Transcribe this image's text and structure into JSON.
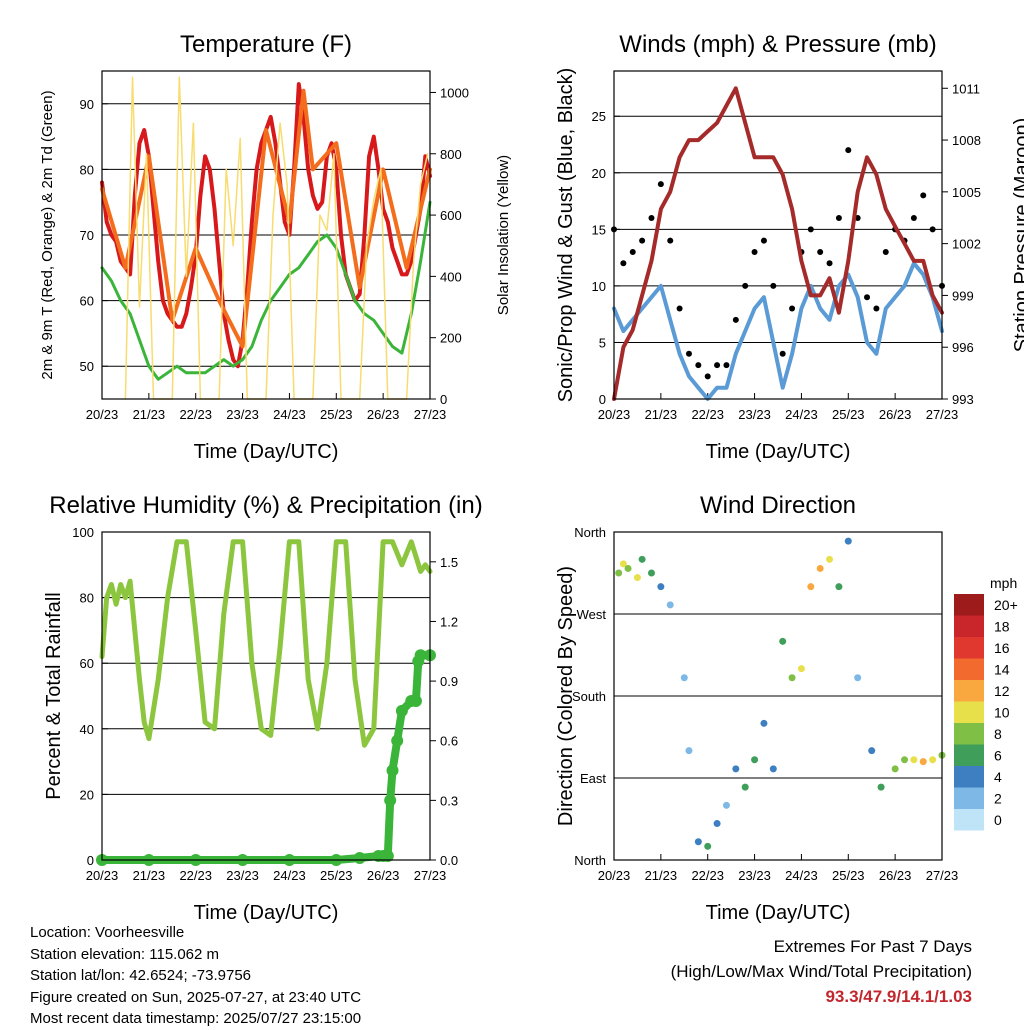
{
  "chart_data": [
    {
      "type": "line",
      "title": "Temperature (F)",
      "xlabel": "Time (Day/UTC)",
      "ylabel": "2m & 9m T (Red, Orange) & 2m Td (Green)",
      "ylabel_right": "Solar Insolation (Yellow)",
      "x_ticks": [
        "20/23",
        "21/23",
        "22/23",
        "23/23",
        "24/23",
        "25/23",
        "26/23",
        "27/23"
      ],
      "ylim": [
        45,
        95
      ],
      "y_ticks": [
        50,
        60,
        70,
        80,
        90
      ],
      "ylim_right": [
        0,
        1070
      ],
      "y_ticks_right": [
        0,
        200,
        400,
        600,
        800,
        1000
      ],
      "grid": true,
      "series": [
        {
          "name": "2m T",
          "color": "#d7191c",
          "axis": "left",
          "x": [
            0,
            0.1,
            0.2,
            0.3,
            0.4,
            0.5,
            0.6,
            0.65,
            0.7,
            0.8,
            0.9,
            1,
            1.1,
            1.2,
            1.3,
            1.4,
            1.5,
            1.6,
            1.7,
            1.8,
            1.9,
            2,
            2.1,
            2.2,
            2.3,
            2.4,
            2.5,
            2.6,
            2.7,
            2.8,
            2.9,
            3,
            3.1,
            3.2,
            3.3,
            3.4,
            3.5,
            3.6,
            3.7,
            3.8,
            3.9,
            4,
            4.1,
            4.2,
            4.3,
            4.4,
            4.5,
            4.6,
            4.7,
            4.8,
            4.9,
            5,
            5.1,
            5.2,
            5.3,
            5.4,
            5.5,
            5.6,
            5.7,
            5.8,
            5.9,
            6,
            6.1,
            6.2,
            6.3,
            6.4,
            6.5,
            6.6,
            6.7,
            6.8,
            6.9,
            7
          ],
          "values": [
            78,
            72,
            70,
            69,
            66,
            65,
            64,
            70,
            76,
            84,
            86,
            82,
            74,
            66,
            60,
            58,
            57,
            56,
            56,
            58,
            62,
            67,
            76,
            82,
            80,
            74,
            66,
            58,
            54,
            51,
            50,
            54,
            62,
            72,
            80,
            84,
            86,
            88,
            84,
            78,
            72,
            70,
            80,
            93,
            88,
            80,
            76,
            74,
            75,
            82,
            84,
            80,
            70,
            64,
            62,
            60,
            61,
            70,
            82,
            85,
            80,
            74,
            72,
            68,
            66,
            64,
            64,
            66,
            70,
            74,
            82,
            79
          ]
        },
        {
          "name": "9m T",
          "color": "#f46d1c",
          "axis": "left",
          "x": [
            0,
            0.5,
            1,
            1.5,
            2,
            2.5,
            3,
            3.5,
            4,
            4.3,
            4.5,
            5,
            5.5,
            6,
            6.5,
            7
          ],
          "values": [
            77,
            65,
            82,
            57,
            68,
            60,
            53,
            86,
            72,
            92,
            80,
            84,
            62,
            80,
            65,
            80
          ]
        },
        {
          "name": "2m Td",
          "color": "#3ab53a",
          "axis": "left",
          "x": [
            0,
            0.2,
            0.4,
            0.6,
            0.8,
            1,
            1.2,
            1.4,
            1.6,
            1.8,
            2,
            2.2,
            2.4,
            2.6,
            2.8,
            3,
            3.2,
            3.4,
            3.6,
            3.8,
            4,
            4.2,
            4.4,
            4.6,
            4.8,
            5,
            5.2,
            5.4,
            5.6,
            5.8,
            6,
            6.2,
            6.4,
            6.6,
            6.8,
            7
          ],
          "values": [
            65,
            63,
            60,
            58,
            54,
            50,
            48,
            49,
            50,
            49,
            49,
            49,
            50,
            51,
            50,
            51,
            53,
            57,
            60,
            62,
            64,
            65,
            67,
            69,
            70,
            68,
            64,
            60,
            58,
            57,
            55,
            53,
            52,
            58,
            66,
            75
          ]
        },
        {
          "name": "Solar Insolation",
          "color": "#f7dc6f",
          "axis": "right",
          "x": [
            0.5,
            0.65,
            0.8,
            0.95,
            1.1,
            1.5,
            1.65,
            1.8,
            1.95,
            2.1,
            2.5,
            2.65,
            2.8,
            2.95,
            3.1,
            3.5,
            3.65,
            3.8,
            3.95,
            4.1,
            4.5,
            4.65,
            4.8,
            4.95,
            5.1,
            5.5,
            5.65,
            5.8,
            5.95,
            6.1,
            6.5,
            6.65,
            6.8,
            6.95
          ],
          "values": [
            0,
            1050,
            300,
            800,
            0,
            0,
            1050,
            400,
            900,
            0,
            0,
            750,
            500,
            850,
            0,
            0,
            600,
            900,
            700,
            0,
            0,
            600,
            550,
            800,
            0,
            0,
            500,
            650,
            750,
            0,
            0,
            450,
            700,
            800
          ]
        }
      ]
    },
    {
      "type": "line",
      "title": "Winds (mph) & Pressure (mb)",
      "xlabel": "Time (Day/UTC)",
      "ylabel": "Sonic/Prop Wind & Gust (Blue, Black)",
      "ylabel_right": "Station Pressure (Maroon)",
      "x_ticks": [
        "20/23",
        "21/23",
        "22/23",
        "23/23",
        "24/23",
        "25/23",
        "26/23",
        "27/23"
      ],
      "ylim": [
        0,
        29
      ],
      "y_ticks": [
        0,
        5,
        10,
        15,
        20,
        25
      ],
      "ylim_right": [
        993,
        1012
      ],
      "y_ticks_right": [
        993,
        996,
        999,
        1002,
        1005,
        1008,
        1011
      ],
      "grid": true,
      "series": [
        {
          "name": "Wind",
          "color": "#5b9bd5",
          "axis": "left",
          "x": [
            0,
            0.2,
            0.4,
            0.6,
            0.8,
            1,
            1.2,
            1.4,
            1.6,
            1.8,
            2,
            2.2,
            2.4,
            2.6,
            2.8,
            3,
            3.2,
            3.4,
            3.6,
            3.8,
            4,
            4.2,
            4.4,
            4.6,
            4.8,
            5,
            5.2,
            5.4,
            5.6,
            5.8,
            6,
            6.2,
            6.4,
            6.6,
            6.8,
            7
          ],
          "values": [
            8,
            6,
            7,
            8,
            9,
            10,
            7,
            4,
            2,
            1,
            0,
            1,
            1,
            4,
            6,
            8,
            9,
            5,
            1,
            4,
            8,
            10,
            8,
            7,
            10,
            11,
            9,
            5,
            4,
            8,
            9,
            10,
            12,
            11,
            9,
            6
          ]
        },
        {
          "name": "Gust",
          "color": "#000000",
          "axis": "left",
          "x": [
            0,
            0.2,
            0.4,
            0.6,
            0.8,
            1,
            1.2,
            1.4,
            1.6,
            1.8,
            2,
            2.2,
            2.4,
            2.6,
            2.8,
            3,
            3.2,
            3.4,
            3.6,
            3.8,
            4,
            4.2,
            4.4,
            4.6,
            4.8,
            5,
            5.2,
            5.4,
            5.6,
            5.8,
            6,
            6.2,
            6.4,
            6.6,
            6.8,
            7
          ],
          "values": [
            15,
            12,
            13,
            14,
            16,
            19,
            14,
            8,
            4,
            3,
            2,
            3,
            3,
            7,
            10,
            13,
            14,
            10,
            4,
            8,
            13,
            15,
            13,
            12,
            16,
            22,
            16,
            9,
            8,
            13,
            15,
            14,
            16,
            18,
            15,
            10
          ]
        },
        {
          "name": "Station Pressure",
          "color": "#a52a2a",
          "axis": "right",
          "x": [
            0,
            0.2,
            0.4,
            0.6,
            0.8,
            1,
            1.2,
            1.4,
            1.6,
            1.8,
            2,
            2.2,
            2.4,
            2.6,
            2.8,
            3,
            3.2,
            3.4,
            3.6,
            3.8,
            4,
            4.2,
            4.4,
            4.6,
            4.8,
            5,
            5.2,
            5.4,
            5.6,
            5.8,
            6,
            6.2,
            6.4,
            6.6,
            6.8,
            7
          ],
          "values": [
            993,
            996,
            997,
            999,
            1001,
            1004,
            1005,
            1007,
            1008,
            1008,
            1008.5,
            1009,
            1010,
            1011,
            1009,
            1007,
            1007,
            1007,
            1006,
            1004,
            1001,
            999,
            999,
            1000,
            998,
            1001,
            1005,
            1007,
            1006,
            1004,
            1003,
            1002,
            1001,
            1001,
            999,
            998
          ]
        }
      ]
    },
    {
      "type": "line",
      "title": "Relative Humidity (%) & Precipitation (in)",
      "xlabel": "Time (Day/UTC)",
      "ylabel": "Percent & Total Rainfall",
      "x_ticks": [
        "20/23",
        "21/23",
        "22/23",
        "23/23",
        "24/23",
        "25/23",
        "26/23",
        "27/23"
      ],
      "ylim": [
        0,
        100
      ],
      "y_ticks": [
        0,
        20,
        40,
        60,
        80,
        100
      ],
      "ylim_right": [
        0,
        1.65
      ],
      "y_ticks_right": [
        "0.0",
        "0.3",
        "0.6",
        "0.9",
        "1.2",
        "1.5"
      ],
      "grid": true,
      "series": [
        {
          "name": "Relative Humidity",
          "color": "#8cc63f",
          "axis": "left",
          "x": [
            0,
            0.1,
            0.2,
            0.3,
            0.4,
            0.5,
            0.6,
            0.7,
            0.8,
            0.9,
            1,
            1.2,
            1.4,
            1.6,
            1.8,
            2,
            2.2,
            2.4,
            2.6,
            2.8,
            3,
            3.2,
            3.4,
            3.6,
            3.8,
            4,
            4.2,
            4.4,
            4.6,
            4.8,
            5,
            5.2,
            5.4,
            5.6,
            5.8,
            6,
            6.2,
            6.4,
            6.6,
            6.8,
            6.9,
            7
          ],
          "values": [
            62,
            80,
            84,
            78,
            84,
            80,
            85,
            70,
            55,
            42,
            37,
            55,
            80,
            97,
            97,
            70,
            42,
            40,
            75,
            97,
            97,
            60,
            40,
            38,
            65,
            97,
            97,
            55,
            40,
            60,
            97,
            97,
            55,
            35,
            40,
            97,
            97,
            90,
            97,
            88,
            90,
            88
          ]
        },
        {
          "name": "Total Precipitation",
          "color": "#3ab53a",
          "axis": "right",
          "x": [
            0,
            1,
            2,
            3,
            4,
            5,
            5.5,
            5.9,
            6,
            6.1,
            6.15,
            6.2,
            6.3,
            6.4,
            6.6,
            6.7,
            6.75,
            6.8,
            7
          ],
          "values": [
            0,
            0,
            0,
            0,
            0,
            0,
            0.01,
            0.02,
            0.02,
            0.02,
            0.3,
            0.45,
            0.6,
            0.75,
            0.8,
            0.8,
            1.0,
            1.03,
            1.03
          ]
        }
      ]
    },
    {
      "type": "scatter",
      "title": "Wind Direction",
      "xlabel": "Time (Day/UTC)",
      "ylabel": "Direction (Colored By Speed)",
      "x_ticks": [
        "20/23",
        "21/23",
        "22/23",
        "23/23",
        "24/23",
        "25/23",
        "26/23",
        "27/23"
      ],
      "y_ticks": [
        "North",
        "East",
        "South",
        "West",
        "North"
      ],
      "ylim": [
        0,
        360
      ],
      "grid": true,
      "legend": {
        "title": "mph",
        "labels": [
          "20+",
          "18",
          "16",
          "14",
          "12",
          "10",
          "8",
          "6",
          "4",
          "2",
          "0"
        ],
        "colors": [
          "#9e1b1b",
          "#c8262b",
          "#e0382f",
          "#f26a2d",
          "#f9a840",
          "#e8e04b",
          "#7fbf45",
          "#3f9f5a",
          "#3d7fc0",
          "#7db8e6",
          "#bfe3f7"
        ]
      },
      "series": [
        {
          "name": "Direction",
          "x": [
            0.1,
            0.2,
            0.3,
            0.5,
            0.6,
            0.8,
            1.0,
            1.2,
            1.5,
            1.6,
            1.8,
            2.0,
            2.2,
            2.4,
            2.6,
            2.8,
            3.0,
            3.2,
            3.4,
            3.6,
            3.8,
            4.0,
            4.2,
            4.4,
            4.6,
            4.8,
            5.0,
            5.2,
            5.5,
            5.7,
            6.0,
            6.2,
            6.4,
            6.6,
            6.8,
            7.0
          ],
          "y": [
            315,
            325,
            320,
            310,
            330,
            315,
            300,
            280,
            200,
            120,
            20,
            15,
            40,
            60,
            100,
            80,
            110,
            150,
            100,
            240,
            200,
            210,
            300,
            320,
            330,
            300,
            350,
            200,
            120,
            80,
            100,
            110,
            110,
            108,
            110,
            115
          ],
          "speed": [
            8,
            10,
            8,
            9,
            6,
            5,
            3,
            2,
            1,
            2,
            4,
            5,
            3,
            2,
            4,
            6,
            5,
            4,
            3,
            6,
            8,
            10,
            11,
            12,
            9,
            6,
            3,
            2,
            4,
            5,
            7,
            8,
            10,
            12,
            10,
            8
          ]
        }
      ]
    }
  ],
  "footer": {
    "location": "Location: Voorheesville",
    "elevation": "Station elevation: 115.062 m",
    "latlon": "Station lat/lon: 42.6524; -73.9756",
    "created": "Figure created on Sun, 2025-07-27, at 23:40 UTC",
    "recent": "Most recent data timestamp: 2025/07/27 23:15:00",
    "extremes_title": "Extremes For Past 7 Days",
    "extremes_subtitle": "(High/Low/Max Wind/Total Precipitation)",
    "extremes_values": "93.3/47.9/14.1/1.03"
  }
}
